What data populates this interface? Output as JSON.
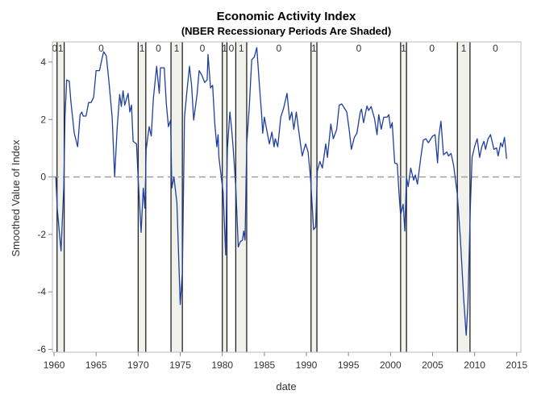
{
  "chart_data": {
    "type": "line",
    "title": "Economic Activity Index",
    "subtitle": "(NBER Recessionary Periods Are Shaded)",
    "xlabel": "date",
    "ylabel": "Smoothed Value of Index",
    "xlim": [
      1959.8,
      2015.5
    ],
    "ylim": [
      -6.1,
      4.7
    ],
    "xticks": [
      1960,
      1965,
      1970,
      1975,
      1980,
      1985,
      1990,
      1995,
      2000,
      2005,
      2010,
      2015
    ],
    "yticks": [
      -6,
      -4,
      -2,
      0,
      2,
      4
    ],
    "grid": false,
    "reference_line": {
      "y": 0,
      "style": "dashed"
    },
    "colors": {
      "line": "#1f3fa0",
      "shade": "#f2f2ec",
      "boundary": "#222222",
      "reference": "#999999"
    },
    "regimes": [
      {
        "start": 1959.8,
        "end": 1960.35,
        "label": "0"
      },
      {
        "start": 1960.35,
        "end": 1961.2,
        "label": "1"
      },
      {
        "start": 1961.2,
        "end": 1970.0,
        "label": "0"
      },
      {
        "start": 1970.0,
        "end": 1970.9,
        "label": "1"
      },
      {
        "start": 1970.9,
        "end": 1973.9,
        "label": "0"
      },
      {
        "start": 1973.9,
        "end": 1975.25,
        "label": "1"
      },
      {
        "start": 1975.25,
        "end": 1980.0,
        "label": "0"
      },
      {
        "start": 1980.0,
        "end": 1980.55,
        "label": "1"
      },
      {
        "start": 1980.55,
        "end": 1981.6,
        "label": "0"
      },
      {
        "start": 1981.6,
        "end": 1982.9,
        "label": "1"
      },
      {
        "start": 1982.9,
        "end": 1990.55,
        "label": "0"
      },
      {
        "start": 1990.55,
        "end": 1991.25,
        "label": "1"
      },
      {
        "start": 1991.25,
        "end": 2001.2,
        "label": "0"
      },
      {
        "start": 2001.2,
        "end": 2001.9,
        "label": "1"
      },
      {
        "start": 2001.9,
        "end": 2007.95,
        "label": "0"
      },
      {
        "start": 2007.95,
        "end": 2009.45,
        "label": "1"
      },
      {
        "start": 2009.45,
        "end": 2015.5,
        "label": "0"
      }
    ],
    "series": [
      {
        "x": [
          1960.2,
          1960.38,
          1960.83,
          1961.15,
          1961.3,
          1961.5,
          1961.8,
          1962.0,
          1962.4,
          1962.8,
          1963.1,
          1963.3,
          1963.45,
          1963.8,
          1964.1,
          1964.4,
          1964.7,
          1965.0,
          1965.4,
          1965.7,
          1965.9,
          1966.2,
          1966.5,
          1966.9,
          1967.2,
          1967.5,
          1967.8,
          1968.0,
          1968.2,
          1968.4,
          1968.8,
          1969.0,
          1969.2,
          1969.4,
          1969.8,
          1970.0,
          1970.35,
          1970.6,
          1970.8,
          1970.95,
          1971.3,
          1971.55,
          1971.8,
          1972.2,
          1972.5,
          1972.65,
          1973.1,
          1973.35,
          1973.6,
          1973.85,
          1974.0,
          1974.25,
          1974.6,
          1975.0,
          1975.25,
          1975.5,
          1975.8,
          1976.1,
          1976.35,
          1976.6,
          1977.0,
          1977.25,
          1977.6,
          1977.9,
          1978.2,
          1978.3,
          1978.6,
          1978.85,
          1979.1,
          1979.35,
          1979.5,
          1979.6,
          1979.9,
          1980.1,
          1980.4,
          1980.6,
          1980.9,
          1981.1,
          1981.3,
          1981.6,
          1981.9,
          1982.15,
          1982.4,
          1982.55,
          1982.7,
          1982.9,
          1983.2,
          1983.5,
          1983.8,
          1984.1,
          1984.4,
          1984.7,
          1984.8,
          1985.0,
          1985.3,
          1985.6,
          1985.9,
          1986.15,
          1986.3,
          1986.6,
          1986.95,
          1987.3,
          1987.7,
          1988.0,
          1988.25,
          1988.5,
          1988.8,
          1989.0,
          1989.3,
          1989.5,
          1989.9,
          1990.2,
          1990.5,
          1990.85,
          1991.1,
          1991.3,
          1991.6,
          1991.9,
          1992.3,
          1992.5,
          1992.9,
          1993.2,
          1993.6,
          1993.9,
          1994.2,
          1994.5,
          1994.8,
          1995.1,
          1995.35,
          1995.7,
          1996.0,
          1996.4,
          1996.55,
          1996.8,
          1997.2,
          1997.4,
          1997.7,
          1998.1,
          1998.4,
          1998.6,
          1998.9,
          1999.2,
          1999.6,
          1999.8,
          2000.0,
          2000.2,
          2000.5,
          2000.8,
          2001.0,
          2001.2,
          2001.5,
          2001.7,
          2001.9,
          2002.1,
          2002.4,
          2002.75,
          2002.95,
          2003.2,
          2003.6,
          2003.9,
          2004.2,
          2004.5,
          2005.0,
          2005.3,
          2005.6,
          2005.75,
          2006.0,
          2006.3,
          2006.7,
          2006.9,
          2007.2,
          2007.5,
          2007.95,
          2008.3,
          2008.7,
          2009.0,
          2009.2,
          2009.5,
          2009.7,
          2010.0,
          2010.3,
          2010.6,
          2010.85,
          2011.1,
          2011.3,
          2011.6,
          2011.9,
          2012.3,
          2012.6,
          2012.8,
          2013.1,
          2013.3,
          2013.55,
          2013.8
        ],
        "y": [
          0,
          -1.1,
          -2.58,
          -0.35,
          2.08,
          3.38,
          3.33,
          2.63,
          1.52,
          1.05,
          2.17,
          2.26,
          2.12,
          2.12,
          2.59,
          2.59,
          2.77,
          3.7,
          3.7,
          4.12,
          4.36,
          4.22,
          3.38,
          2.08,
          0,
          1.7,
          2.87,
          2.45,
          3.0,
          2.5,
          2.91,
          2.26,
          2.5,
          1.24,
          1.15,
          -0.07,
          -1.93,
          -0.39,
          -1.09,
          0.96,
          1.75,
          1.42,
          2.73,
          3.85,
          2.91,
          3.8,
          3.8,
          2.54,
          1.75,
          1.98,
          -0.39,
          0,
          -0.9,
          -4.44,
          -3.32,
          2.08,
          3.0,
          3.85,
          3.19,
          1.98,
          2.87,
          3.7,
          3.52,
          3.29,
          3.38,
          4.26,
          3.1,
          3.19,
          1.89,
          1.05,
          1.47,
          0.68,
          -0.07,
          -0.53,
          -2.72,
          0.96,
          2.26,
          1.7,
          0.96,
          -0.34,
          -2.44,
          -2.25,
          -2.2,
          -1.88,
          -2.2,
          1.15,
          2.4,
          4.08,
          4.17,
          4.5,
          3.24,
          2.08,
          1.52,
          2.08,
          1.61,
          1.15,
          1.56,
          1.05,
          1.33,
          1.05,
          2.08,
          2.4,
          2.91,
          1.98,
          2.26,
          1.66,
          2.26,
          1.8,
          1.15,
          0.73,
          1.15,
          0.87,
          -0.07,
          -1.83,
          -1.74,
          0.21,
          0.54,
          0.31,
          1.15,
          0.68,
          1.84,
          1.33,
          1.66,
          2.5,
          2.54,
          2.4,
          2.26,
          1.61,
          0.96,
          1.38,
          1.52,
          2.26,
          2.36,
          1.89,
          2.47,
          2.31,
          2.45,
          2.03,
          1.47,
          2.17,
          1.66,
          2.08,
          2.08,
          2.17,
          1.7,
          1.89,
          0.49,
          0.45,
          -0.53,
          -1.32,
          -0.95,
          -1.88,
          0,
          -0.34,
          0.31,
          -0.11,
          0.07,
          -0.25,
          0.68,
          1.28,
          1.33,
          1.19,
          1.42,
          1.47,
          0.49,
          1.42,
          1.94,
          0.77,
          0.87,
          0.73,
          0.82,
          0.4,
          -0.62,
          -2.11,
          -4.26,
          -5.51,
          -4.44,
          -1.0,
          0.68,
          1.05,
          1.33,
          0.68,
          1.05,
          1.24,
          0.96,
          1.33,
          1.47,
          0.96,
          1.01,
          0.73,
          1.19,
          1.05,
          1.38,
          0.63
        ]
      }
    ]
  }
}
